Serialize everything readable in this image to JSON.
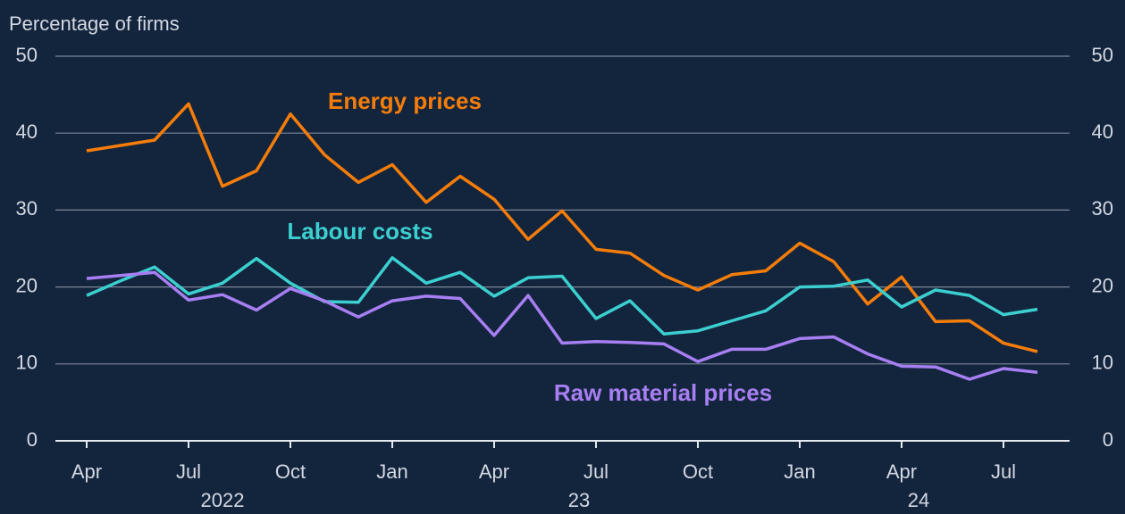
{
  "chart_data": {
    "type": "line",
    "y_label": "Percentage of firms",
    "categories": [
      "Apr",
      null,
      null,
      "Jul",
      null,
      null,
      "Oct",
      null,
      null,
      "Jan",
      null,
      null,
      "Apr",
      null,
      null,
      "Jul",
      null,
      null,
      "Oct",
      null,
      null,
      "Jan",
      null,
      null,
      "Apr",
      null,
      null,
      "Jul",
      null
    ],
    "year_labels": [
      "2022",
      "23",
      "24"
    ],
    "series": [
      {
        "name": "Energy prices",
        "color": "#f47d0a",
        "values": [
          37.7,
          38.4,
          39.1,
          43.8,
          33.1,
          35.1,
          42.5,
          37.2,
          33.6,
          35.9,
          31.0,
          34.4,
          31.4,
          26.2,
          29.9,
          24.9,
          24.4,
          21.5,
          19.6,
          21.6,
          22.1,
          25.7,
          23.3,
          17.8,
          21.3,
          15.5,
          15.6,
          12.7,
          11.6
        ]
      },
      {
        "name": "Labour costs",
        "color": "#3ccfcf",
        "values": [
          18.9,
          20.8,
          22.6,
          19.1,
          20.5,
          23.7,
          20.5,
          18.1,
          18.0,
          23.8,
          20.5,
          21.9,
          18.8,
          21.2,
          21.4,
          15.9,
          18.2,
          13.9,
          14.3,
          15.6,
          16.9,
          20.0,
          20.1,
          20.9,
          17.4,
          19.6,
          18.9,
          16.4,
          17.1
        ]
      },
      {
        "name": "Raw material prices",
        "color": "#a77ff2",
        "values": [
          21.1,
          21.5,
          21.9,
          18.3,
          19.0,
          17.0,
          19.8,
          18.2,
          16.1,
          18.2,
          18.8,
          18.5,
          13.7,
          18.9,
          12.7,
          12.9,
          12.8,
          12.6,
          10.3,
          11.9,
          11.9,
          13.3,
          13.5,
          11.3,
          9.7,
          9.6,
          8.0,
          9.4,
          8.9
        ]
      }
    ],
    "ylim": [
      0,
      50
    ],
    "yticks": [
      0,
      10,
      20,
      30,
      40,
      50
    ],
    "y2lim": [
      0,
      50
    ],
    "y2ticks": [
      0,
      10,
      20,
      30,
      40,
      50
    ],
    "grid": true
  }
}
